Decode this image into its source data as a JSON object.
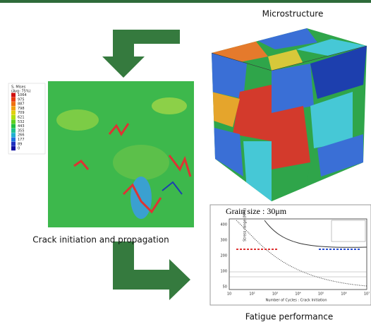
{
  "labels": {
    "microstructure": "Microstructure",
    "crack": "Crack initiation and propagation",
    "fatigue": "Fatigue performance"
  },
  "stress_legend": {
    "title": "S, Mises",
    "subtitle": "(Avg: 75%)",
    "values": [
      "1064",
      "975",
      "887",
      "798",
      "709",
      "621",
      "532",
      "443",
      "355",
      "266",
      "177",
      "89",
      "0"
    ]
  },
  "graph": {
    "title": "Grain size : 30μm",
    "x_label": "Number of Cycles : Crack Initiation",
    "y_label": "Stress range (MPa)",
    "y_ticks": [
      "400",
      "300",
      "200",
      "100",
      "50"
    ],
    "x_ticks": [
      "10",
      "10²",
      "10³",
      "10⁴",
      "10⁵",
      "10⁶",
      "10⁷"
    ]
  }
}
